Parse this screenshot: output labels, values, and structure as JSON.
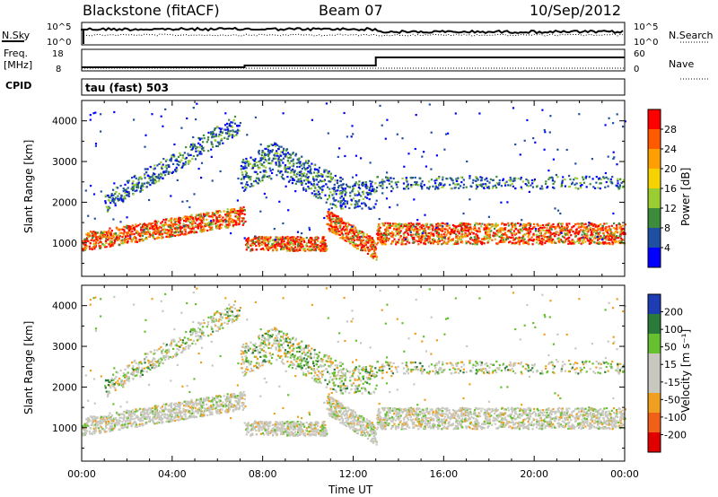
{
  "header": {
    "radar": "Blackstone (fitACF)",
    "beam": "Beam 07",
    "date": "10/Sep/2012"
  },
  "top_panels": {
    "nsky_label": "N.Sky",
    "nsky_ticks": [
      "10^5",
      "10^0"
    ],
    "nsearch_label": "N.Search",
    "nsearch_ticks": [
      "10^5",
      "10^0"
    ],
    "freq_label_1": "Freq.",
    "freq_label_2": "[MHz]",
    "freq_ticks": [
      "18",
      "8"
    ],
    "nave_label": "Nave",
    "nave_ticks": [
      "60",
      "0"
    ],
    "cpid_label": "CPID",
    "cpid_value": "tau (fast) 503"
  },
  "chart_data": [
    {
      "type": "heatmap",
      "name": "power-panel",
      "ylabel": "Slant Range [km]",
      "yticks": [
        1000,
        2000,
        3000,
        4000
      ],
      "ylim": [
        180,
        4500
      ],
      "xticks": [
        "00:00",
        "04:00",
        "08:00",
        "12:00",
        "16:00",
        "20:00",
        "00:00"
      ],
      "xlim_hours": [
        0,
        24
      ],
      "colorbar": {
        "label": "Power [dB]",
        "ticks": [
          "28",
          "24",
          "20",
          "16",
          "12",
          "8",
          "4"
        ],
        "colors": [
          "#ff0000",
          "#ff5a00",
          "#ffa000",
          "#f5d200",
          "#9acd32",
          "#3c8c3c",
          "#1e4fa0",
          "#0000ff"
        ]
      },
      "features": [
        {
          "desc": "main band",
          "start_h": 0,
          "end_h": 24,
          "range_km": [
            900,
            1500
          ],
          "dominant": "red-orange"
        },
        {
          "desc": "upper arc",
          "start_h": 7,
          "end_h": 12,
          "peak_range_km": 3500
        }
      ]
    },
    {
      "type": "heatmap",
      "name": "velocity-panel",
      "ylabel": "Slant Range [km]",
      "yticks": [
        1000,
        2000,
        3000,
        4000
      ],
      "ylim": [
        180,
        4500
      ],
      "xticks": [
        "00:00",
        "04:00",
        "08:00",
        "12:00",
        "16:00",
        "20:00",
        "00:00"
      ],
      "xlabel": "Time UT",
      "colorbar": {
        "label": "Velocity [m s⁻¹]",
        "ticks": [
          "200",
          "100",
          "50",
          "15",
          "-15",
          "-50",
          "-100",
          "-200"
        ],
        "colors": [
          "#1e3cb4",
          "#2a7a3a",
          "#66c030",
          "#c8c8c0",
          "#c8c8c0",
          "#f0a020",
          "#f06018",
          "#e00000"
        ]
      }
    }
  ],
  "colors": {
    "power": [
      "#0000ff",
      "#1e4fa0",
      "#3c8c3c",
      "#9acd32",
      "#f5d200",
      "#ffa000",
      "#ff5a00",
      "#ff0000"
    ],
    "velocity_gray": "#c8c8c0",
    "velocity_green": "#66c030",
    "velocity_orange": "#f0a020"
  }
}
